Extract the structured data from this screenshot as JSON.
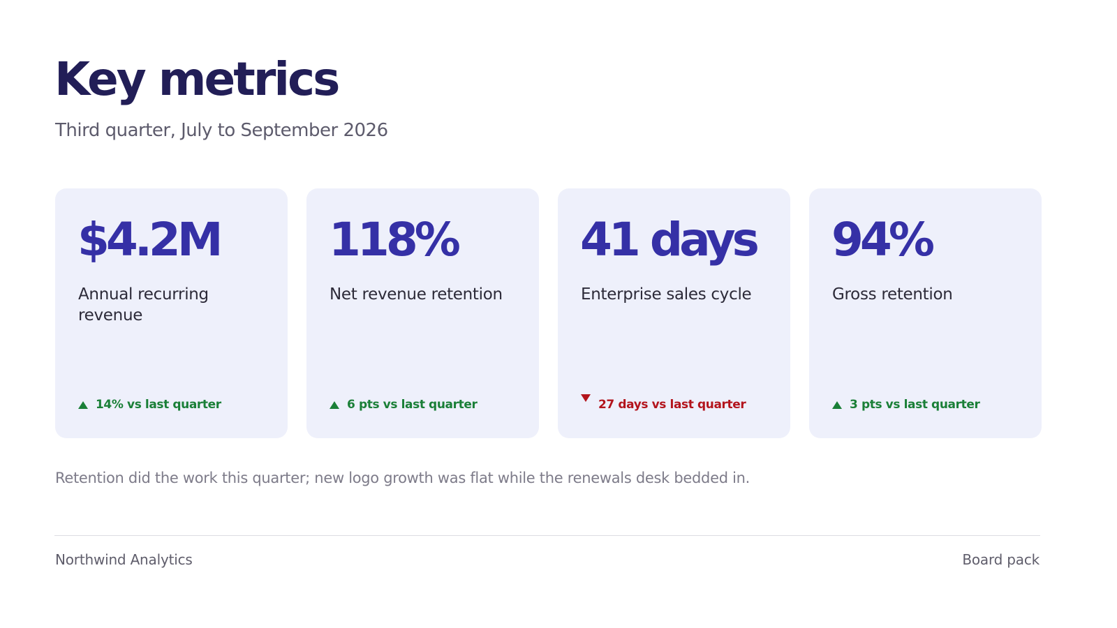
{
  "header": {
    "title": "Key metrics",
    "subtitle": "Third quarter, July to September 2026"
  },
  "metrics": [
    {
      "value": "$4.2M",
      "label": "Annual recurring revenue",
      "delta": "14% vs last quarter",
      "direction": "up"
    },
    {
      "value": "118%",
      "label": "Net revenue retention",
      "delta": "6 pts vs last quarter",
      "direction": "up"
    },
    {
      "value": "41 days",
      "label": "Enterprise sales cycle",
      "delta": "27 days vs last quarter",
      "direction": "down"
    },
    {
      "value": "94%",
      "label": "Gross retention",
      "delta": "3 pts vs last quarter",
      "direction": "up"
    }
  ],
  "note": "Retention did the work this quarter; new logo growth was flat while the renewals desk bedded in.",
  "footer": {
    "company": "Northwind Analytics",
    "document": "Board pack"
  },
  "colors": {
    "accent": "#3530a6",
    "card_background": "#eef0fb",
    "positive": "#1a7f37",
    "negative": "#b3141c"
  }
}
